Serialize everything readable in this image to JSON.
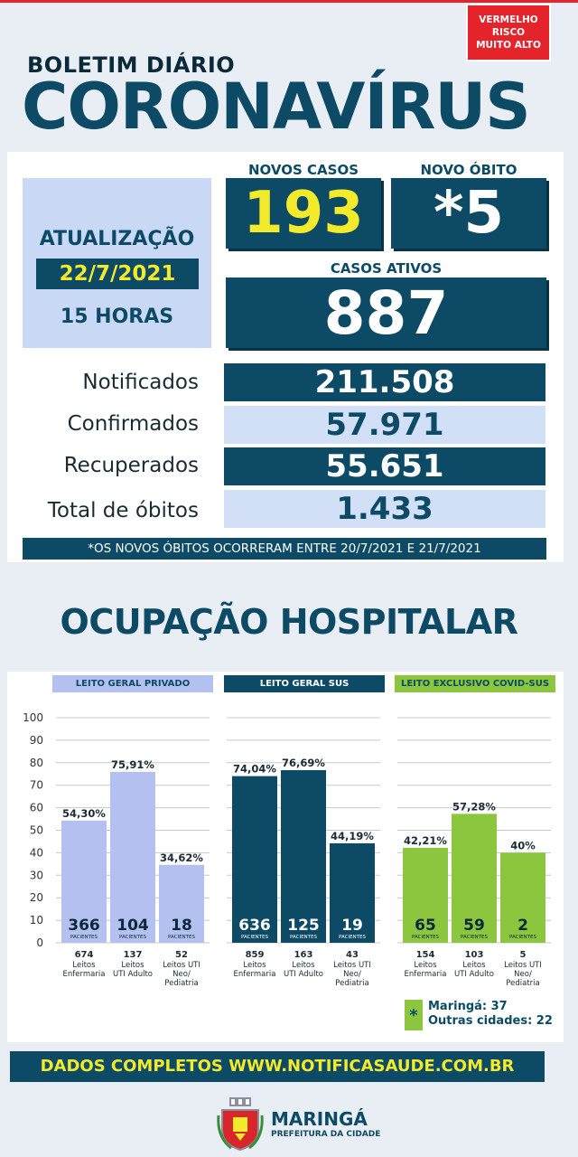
{
  "risk_badge": {
    "line1": "VERMELHO",
    "line2": "RISCO",
    "line3": "MUITO ALTO"
  },
  "header": {
    "subtitle": "BOLETIM DIÁRIO",
    "title": "CORONAVÍRUS"
  },
  "update": {
    "label": "ATUALIZAÇÃO",
    "date": "22/7/2021",
    "hour": "15 HORAS"
  },
  "new_cases": {
    "label": "NOVOS CASOS",
    "value": "193"
  },
  "new_death": {
    "label": "NOVO ÓBITO",
    "value": "*5"
  },
  "active_cases": {
    "label": "CASOS ATIVOS",
    "value": "887"
  },
  "totals": [
    {
      "label": "Notificados",
      "value": "211.508"
    },
    {
      "label": "Confirmados",
      "value": "57.971"
    },
    {
      "label": "Recuperados",
      "value": "55.651"
    },
    {
      "label": "Total de óbitos",
      "value": "1.433"
    }
  ],
  "footnote": "*OS NOVOS ÓBITOS OCORRERAM ENTRE 20/7/2021 E 21/7/2021",
  "hospital": {
    "title": "OCUPAÇÃO HOSPITALAR",
    "legend": {
      "mark": "*",
      "line1": "Maringá: 37",
      "line2": "Outras cidades: 22"
    }
  },
  "chart_data": {
    "type": "bar",
    "ylim": [
      0,
      100
    ],
    "yticks": [
      0,
      10,
      20,
      30,
      40,
      50,
      60,
      70,
      80,
      90,
      100
    ],
    "patients_unit": "PACIENTES",
    "groups": [
      {
        "name": "LEITO GERAL PRIVADO",
        "color": "#b4c1f0",
        "bars": [
          {
            "pct": 54.3,
            "pct_label": "54,30%",
            "patients": "366",
            "beds": "674",
            "bed_type": [
              "Leitos",
              "Enfermaria"
            ]
          },
          {
            "pct": 75.91,
            "pct_label": "75,91%",
            "patients": "104",
            "beds": "137",
            "bed_type": [
              "Leitos",
              "UTI Adulto"
            ]
          },
          {
            "pct": 34.62,
            "pct_label": "34,62%",
            "patients": "18",
            "beds": "52",
            "bed_type": [
              "Leitos UTI",
              "Neo/",
              "Pediatria"
            ]
          }
        ]
      },
      {
        "name": "LEITO GERAL SUS",
        "color": "#0c4a66",
        "bars": [
          {
            "pct": 74.04,
            "pct_label": "74,04%",
            "patients": "636",
            "beds": "859",
            "bed_type": [
              "Leitos",
              "Enfermaria"
            ]
          },
          {
            "pct": 76.69,
            "pct_label": "76,69%",
            "patients": "125",
            "beds": "163",
            "bed_type": [
              "Leitos",
              "UTI Adulto"
            ]
          },
          {
            "pct": 44.19,
            "pct_label": "44,19%",
            "patients": "19",
            "beds": "43",
            "bed_type": [
              "Leitos UTI",
              "Neo/",
              "Pediatria"
            ]
          }
        ]
      },
      {
        "name": "LEITO EXCLUSIVO COVID-SUS",
        "color": "#8cc63e",
        "bars": [
          {
            "pct": 42.21,
            "pct_label": "42,21%",
            "patients": "65",
            "beds": "154",
            "bed_type": [
              "Leitos",
              "Enfermaria"
            ]
          },
          {
            "pct": 57.28,
            "pct_label": "57,28%",
            "patients": "59",
            "beds": "103",
            "bed_type": [
              "Leitos",
              "UTI Adulto"
            ]
          },
          {
            "pct": 40,
            "pct_label": "40%",
            "patients": "2",
            "beds": "5",
            "bed_type": [
              "Leitos UTI",
              "Neo/",
              "Pediatria"
            ]
          }
        ]
      }
    ]
  },
  "cta": "DADOS COMPLETOS  WWW.NOTIFICASAUDE.COM.BR",
  "logo": {
    "name": "MARINGÁ",
    "subtitle": "PREFEITURA DA CIDADE"
  }
}
